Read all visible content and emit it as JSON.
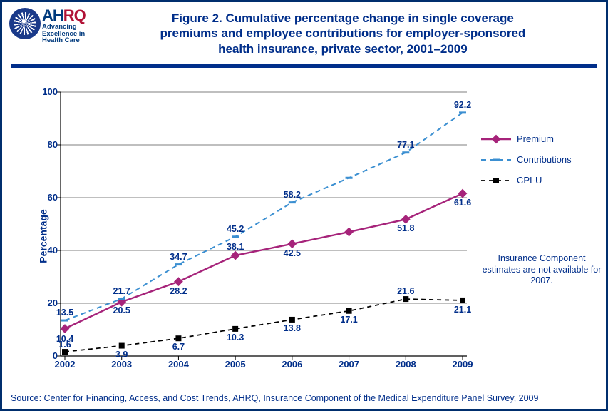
{
  "header": {
    "ahrq_tag1": "Advancing",
    "ahrq_tag2": "Excellence in",
    "ahrq_tag3": "Health Care",
    "title_l1": "Figure 2. Cumulative percentage change in single coverage",
    "title_l2": "premiums and employee contributions for employer-sponsored",
    "title_l3": "health insurance, private sector, 2001–2009"
  },
  "chart": {
    "type": "line",
    "ylabel": "Percentage",
    "ylim": [
      0,
      100
    ],
    "ytick_step": 20,
    "yticks": [
      0,
      20,
      40,
      60,
      80,
      100
    ],
    "x_categories": [
      "2002",
      "2003",
      "2004",
      "2005",
      "2006",
      "2007",
      "2008",
      "2009"
    ],
    "grid_color": "#000000",
    "grid_width": 0.6,
    "axis_color": "#000000",
    "background_color": "#ffffff",
    "label_fontsize": 12.5,
    "tick_fontsize": 13,
    "tick_color": "#002e8a",
    "series": [
      {
        "id": "premium",
        "label": "Premium",
        "color": "#a6237a",
        "line_width": 2.4,
        "dash": "none",
        "marker": "diamond",
        "marker_size": 9,
        "y": [
          10.4,
          20.5,
          28.2,
          38.1,
          42.5,
          47.0,
          51.8,
          61.6
        ],
        "labels": [
          "10.4",
          "20.5",
          "28.2",
          "38.1",
          "42.5",
          null,
          "51.8",
          "61.6"
        ],
        "label_dy": [
          14,
          12,
          13,
          -12,
          13,
          0,
          13,
          13
        ]
      },
      {
        "id": "contributions",
        "label": "Contributions",
        "color": "#3b8fd1",
        "line_width": 2.0,
        "dash": "7 5",
        "marker": "dash",
        "marker_size": 10,
        "y": [
          13.5,
          21.7,
          34.7,
          45.2,
          58.2,
          67.5,
          77.1,
          92.2
        ],
        "labels": [
          "13.5",
          "21.7",
          "34.7",
          "45.2",
          "58.2",
          null,
          "77.1",
          "92.2"
        ],
        "label_dy": [
          -11,
          -11,
          -11,
          -11,
          -11,
          0,
          -11,
          -11
        ]
      },
      {
        "id": "cpiu",
        "label": "CPI-U",
        "color": "#000000",
        "line_width": 1.8,
        "dash": "6 5",
        "marker": "square",
        "marker_size": 8,
        "y": [
          1.6,
          3.9,
          6.7,
          10.3,
          13.8,
          17.1,
          21.6,
          21.1
        ],
        "labels": [
          "1.6",
          "3.9",
          "6.7",
          "10.3",
          "13.8",
          "17.1",
          "21.6",
          "21.1"
        ],
        "label_dy": [
          -10,
          12,
          12,
          12,
          12,
          12,
          -11,
          13
        ]
      }
    ],
    "side_note": "Insurance Component estimates are not available for 2007."
  },
  "source": "Source: Center for Financing, Access, and Cost Trends, AHRQ, Insurance Component of the Medical Expenditure Panel Survey, 2009"
}
